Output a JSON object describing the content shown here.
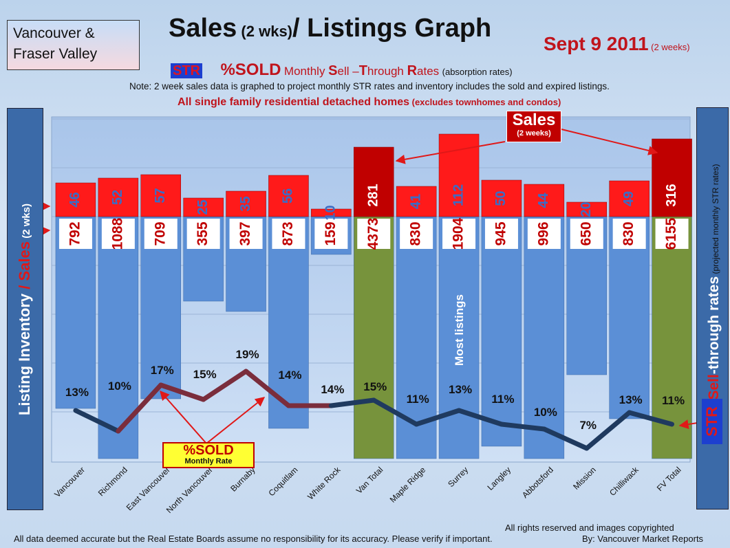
{
  "header": {
    "region_line1": "Vancouver &",
    "region_line2": "Fraser Valley",
    "title_main": "Sales",
    "title_sub": " (2 wks)",
    "title_tail": "/ Listings Graph",
    "date": "Sept 9 2011",
    "date_sub": " (2 weeks)",
    "str_badge": "STR",
    "pct_sold": "%SOLD",
    "monthly_pre": " Monthly ",
    "monthly_s": "S",
    "monthly_ell": "ell –",
    "monthly_t": "T",
    "monthly_hrough": "hrough ",
    "monthly_r": "R",
    "monthly_ates": "ates",
    "absorption": " (absorption rates)",
    "note": "Note: 2 week sales data is graphed to project monthly STR rates and inventory includes the sold and expired listings.",
    "subtitle_main": "All single family residential detached homes",
    "subtitle_sub": " (excludes townhomes and condos)"
  },
  "left_axis": {
    "part1": "Listing Inventory",
    "slash": " / ",
    "part2": "Sales",
    "part3": " (2 wks)"
  },
  "right_axis": {
    "part1": "Sell",
    "part2": "-through rates",
    "part3": "  (projected monthly STR rates)",
    "str": "STR"
  },
  "callouts": {
    "sales_big": "Sales",
    "sales_small": "(2 weeks)",
    "sold_big": "%SOLD",
    "sold_small": "Monthly Rate",
    "most_listings": "Most listings"
  },
  "footer": {
    "disclaimer": "All data deemed accurate but the Real Estate Boards assume no responsibility for its accuracy.  Please verify if important.",
    "rights": "All rights reserved and  images copyrighted",
    "by": "By: Vancouver Market Reports"
  },
  "colors": {
    "sales_red": "#ff1a1a",
    "sales_total_red": "#c00000",
    "listing_blue": "#5b8fd6",
    "total_green": "#77933c",
    "line_dark": "#1f3a5f",
    "line_maroon": "#7a2d3c"
  },
  "chart_data": {
    "type": "bar",
    "categories": [
      "Vancouver",
      "Richmond",
      "East Vancouver",
      "North Vancouver",
      "Burnaby",
      "Coquitlam",
      "White Rock",
      "Van Total",
      "Maple Ridge",
      "Surrey",
      "Langley",
      "Abbotsford",
      "Mission",
      "Chilliwack",
      "FV Total"
    ],
    "series": [
      {
        "name": "Sales",
        "values": [
          46,
          52,
          57,
          25,
          35,
          56,
          10,
          281,
          41,
          112,
          50,
          44,
          20,
          49,
          316
        ]
      },
      {
        "name": "Listing Inventory",
        "values": [
          792,
          1088,
          709,
          355,
          397,
          873,
          159,
          4373,
          830,
          1904,
          945,
          996,
          650,
          830,
          6155
        ]
      },
      {
        "name": "%SOLD",
        "values": [
          13,
          10,
          17,
          15,
          19,
          14,
          14,
          15,
          11,
          13,
          11,
          10,
          7,
          13,
          11
        ]
      }
    ],
    "totals": [
      "Van Total",
      "FV Total"
    ],
    "grid": true
  }
}
